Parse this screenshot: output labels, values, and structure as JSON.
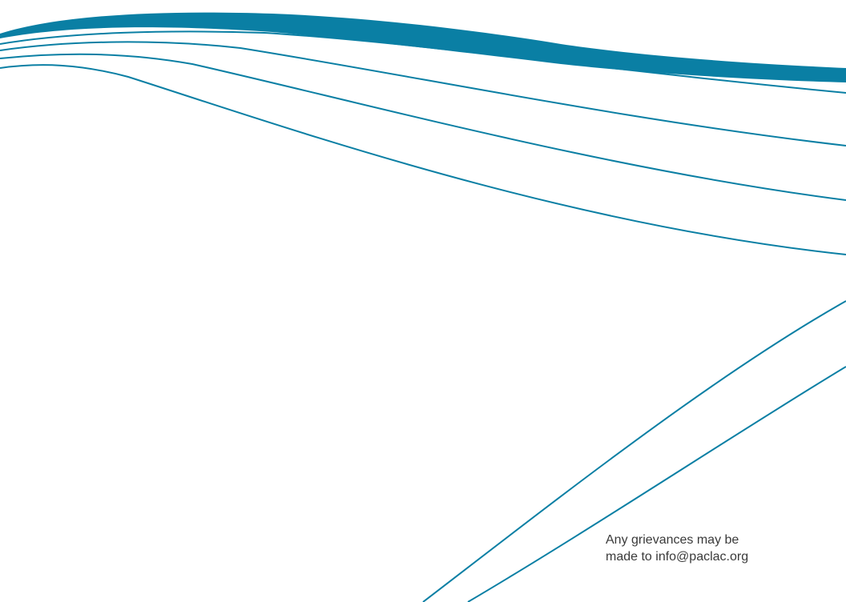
{
  "colors": {
    "accent": "#0a7fa4",
    "text": "#3a3a3a",
    "background": "#ffffff"
  },
  "footer": {
    "line1": "Any grievances may be",
    "line2": "made to info@paclac.org"
  }
}
